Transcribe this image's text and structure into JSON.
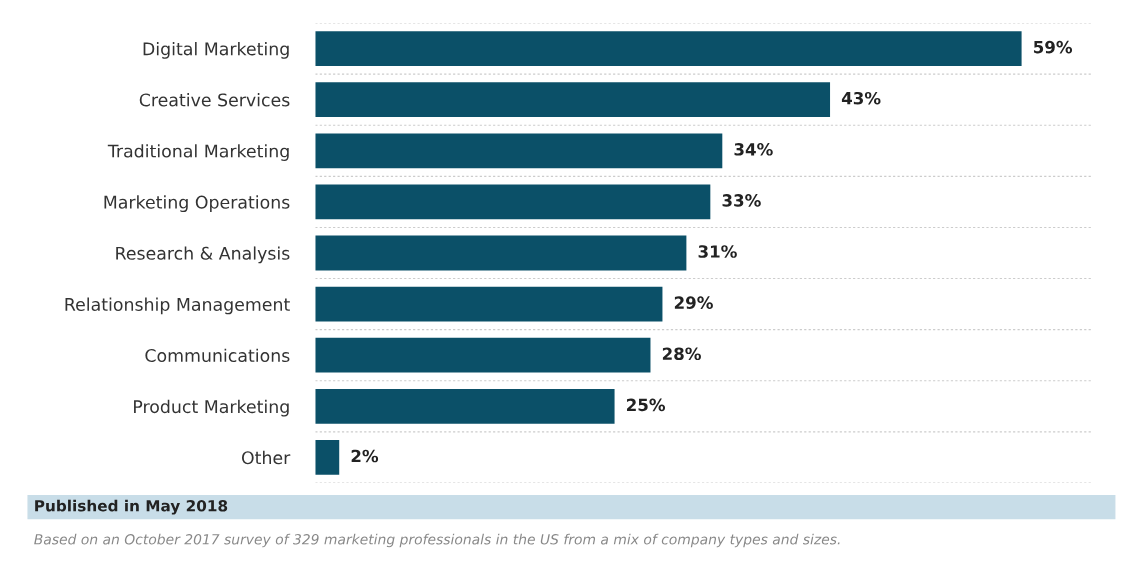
{
  "chart_data": {
    "type": "bar",
    "orientation": "horizontal",
    "categories": [
      "Digital Marketing",
      "Creative Services",
      "Traditional Marketing",
      "Marketing Operations",
      "Research & Analysis",
      "Relationship Management",
      "Communications",
      "Product Marketing",
      "Other"
    ],
    "values": [
      59,
      43,
      34,
      33,
      31,
      29,
      28,
      25,
      2
    ],
    "value_labels": [
      "59%",
      "43%",
      "34%",
      "33%",
      "31%",
      "29%",
      "28%",
      "25%",
      "2%"
    ],
    "color": "#0b5068",
    "annotations": [
      "Published in May 2018",
      "Based on an October 2017 survey of 329 marketing professionals in the US from a mix of company types and sizes."
    ]
  }
}
